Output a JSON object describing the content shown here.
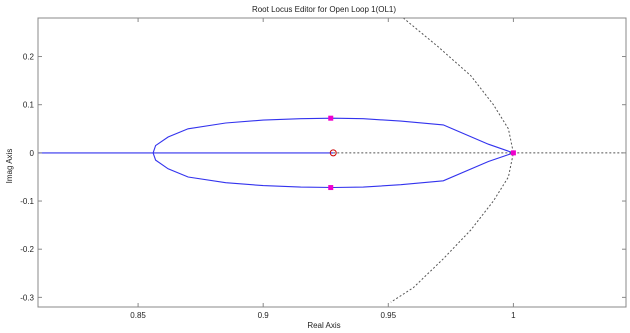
{
  "chart_data": {
    "type": "line",
    "title": "Root Locus Editor for Open Loop 1(OL1)",
    "xlabel": "Real Axis",
    "ylabel": "Imag Axis",
    "xlim": [
      0.81,
      1.045
    ],
    "ylim": [
      -0.32,
      0.28
    ],
    "x_ticks": [
      0.85,
      0.9,
      0.95,
      1
    ],
    "x_tick_labels": [
      "0.85",
      "0.9",
      "0.95",
      "1"
    ],
    "y_ticks": [
      0.2,
      0.1,
      0,
      -0.1,
      -0.2,
      -0.3
    ],
    "y_tick_labels": [
      "0.2",
      "0.1",
      "0",
      "-0.1",
      "-0.2",
      "-0.3"
    ],
    "grid": false,
    "series": [
      {
        "role": "locus-upper-branch",
        "color": "#3333ee",
        "x": [
          1.0,
          0.99,
          0.972,
          0.955,
          0.94,
          0.928,
          0.915,
          0.9,
          0.885,
          0.87,
          0.862,
          0.857,
          0.856
        ],
        "y": [
          0.0,
          0.018,
          0.058,
          0.066,
          0.071,
          0.072,
          0.071,
          0.068,
          0.062,
          0.05,
          0.033,
          0.015,
          0.0
        ]
      },
      {
        "role": "locus-lower-branch",
        "color": "#3333ee",
        "x": [
          1.0,
          0.99,
          0.972,
          0.955,
          0.94,
          0.928,
          0.915,
          0.9,
          0.885,
          0.87,
          0.862,
          0.857,
          0.856
        ],
        "y": [
          0.0,
          -0.018,
          -0.058,
          -0.066,
          -0.071,
          -0.072,
          -0.071,
          -0.068,
          -0.062,
          -0.05,
          -0.033,
          -0.015,
          0.0
        ]
      },
      {
        "role": "locus-real-axis-segment",
        "color": "#3333ee",
        "x": [
          0.81,
          0.928
        ],
        "y": [
          0,
          0
        ]
      },
      {
        "role": "unit-circle",
        "color": "#555555",
        "style": "dotted",
        "x": [
          0.956,
          0.97,
          0.983,
          0.992,
          0.998,
          1.0,
          0.998,
          0.992,
          0.983,
          0.972,
          0.96,
          0.951
        ],
        "y": [
          0.28,
          0.22,
          0.16,
          0.1,
          0.05,
          0.0,
          -0.05,
          -0.1,
          -0.16,
          -0.22,
          -0.28,
          -0.31
        ]
      },
      {
        "role": "real-axis-reference",
        "color": "#555555",
        "style": "dotted",
        "x": [
          0.928,
          1.045
        ],
        "y": [
          0,
          0
        ]
      }
    ],
    "markers": [
      {
        "role": "closed-loop-pole",
        "shape": "square",
        "color": "#ee00cc",
        "x": 0.927,
        "y": 0.072
      },
      {
        "role": "closed-loop-pole",
        "shape": "square",
        "color": "#ee00cc",
        "x": 0.927,
        "y": -0.072
      },
      {
        "role": "closed-loop-pole",
        "shape": "square",
        "color": "#ee00cc",
        "x": 1.0,
        "y": 0.0
      },
      {
        "role": "zero",
        "shape": "circle",
        "color": "#cc0000",
        "x": 0.928,
        "y": 0.0
      }
    ]
  }
}
